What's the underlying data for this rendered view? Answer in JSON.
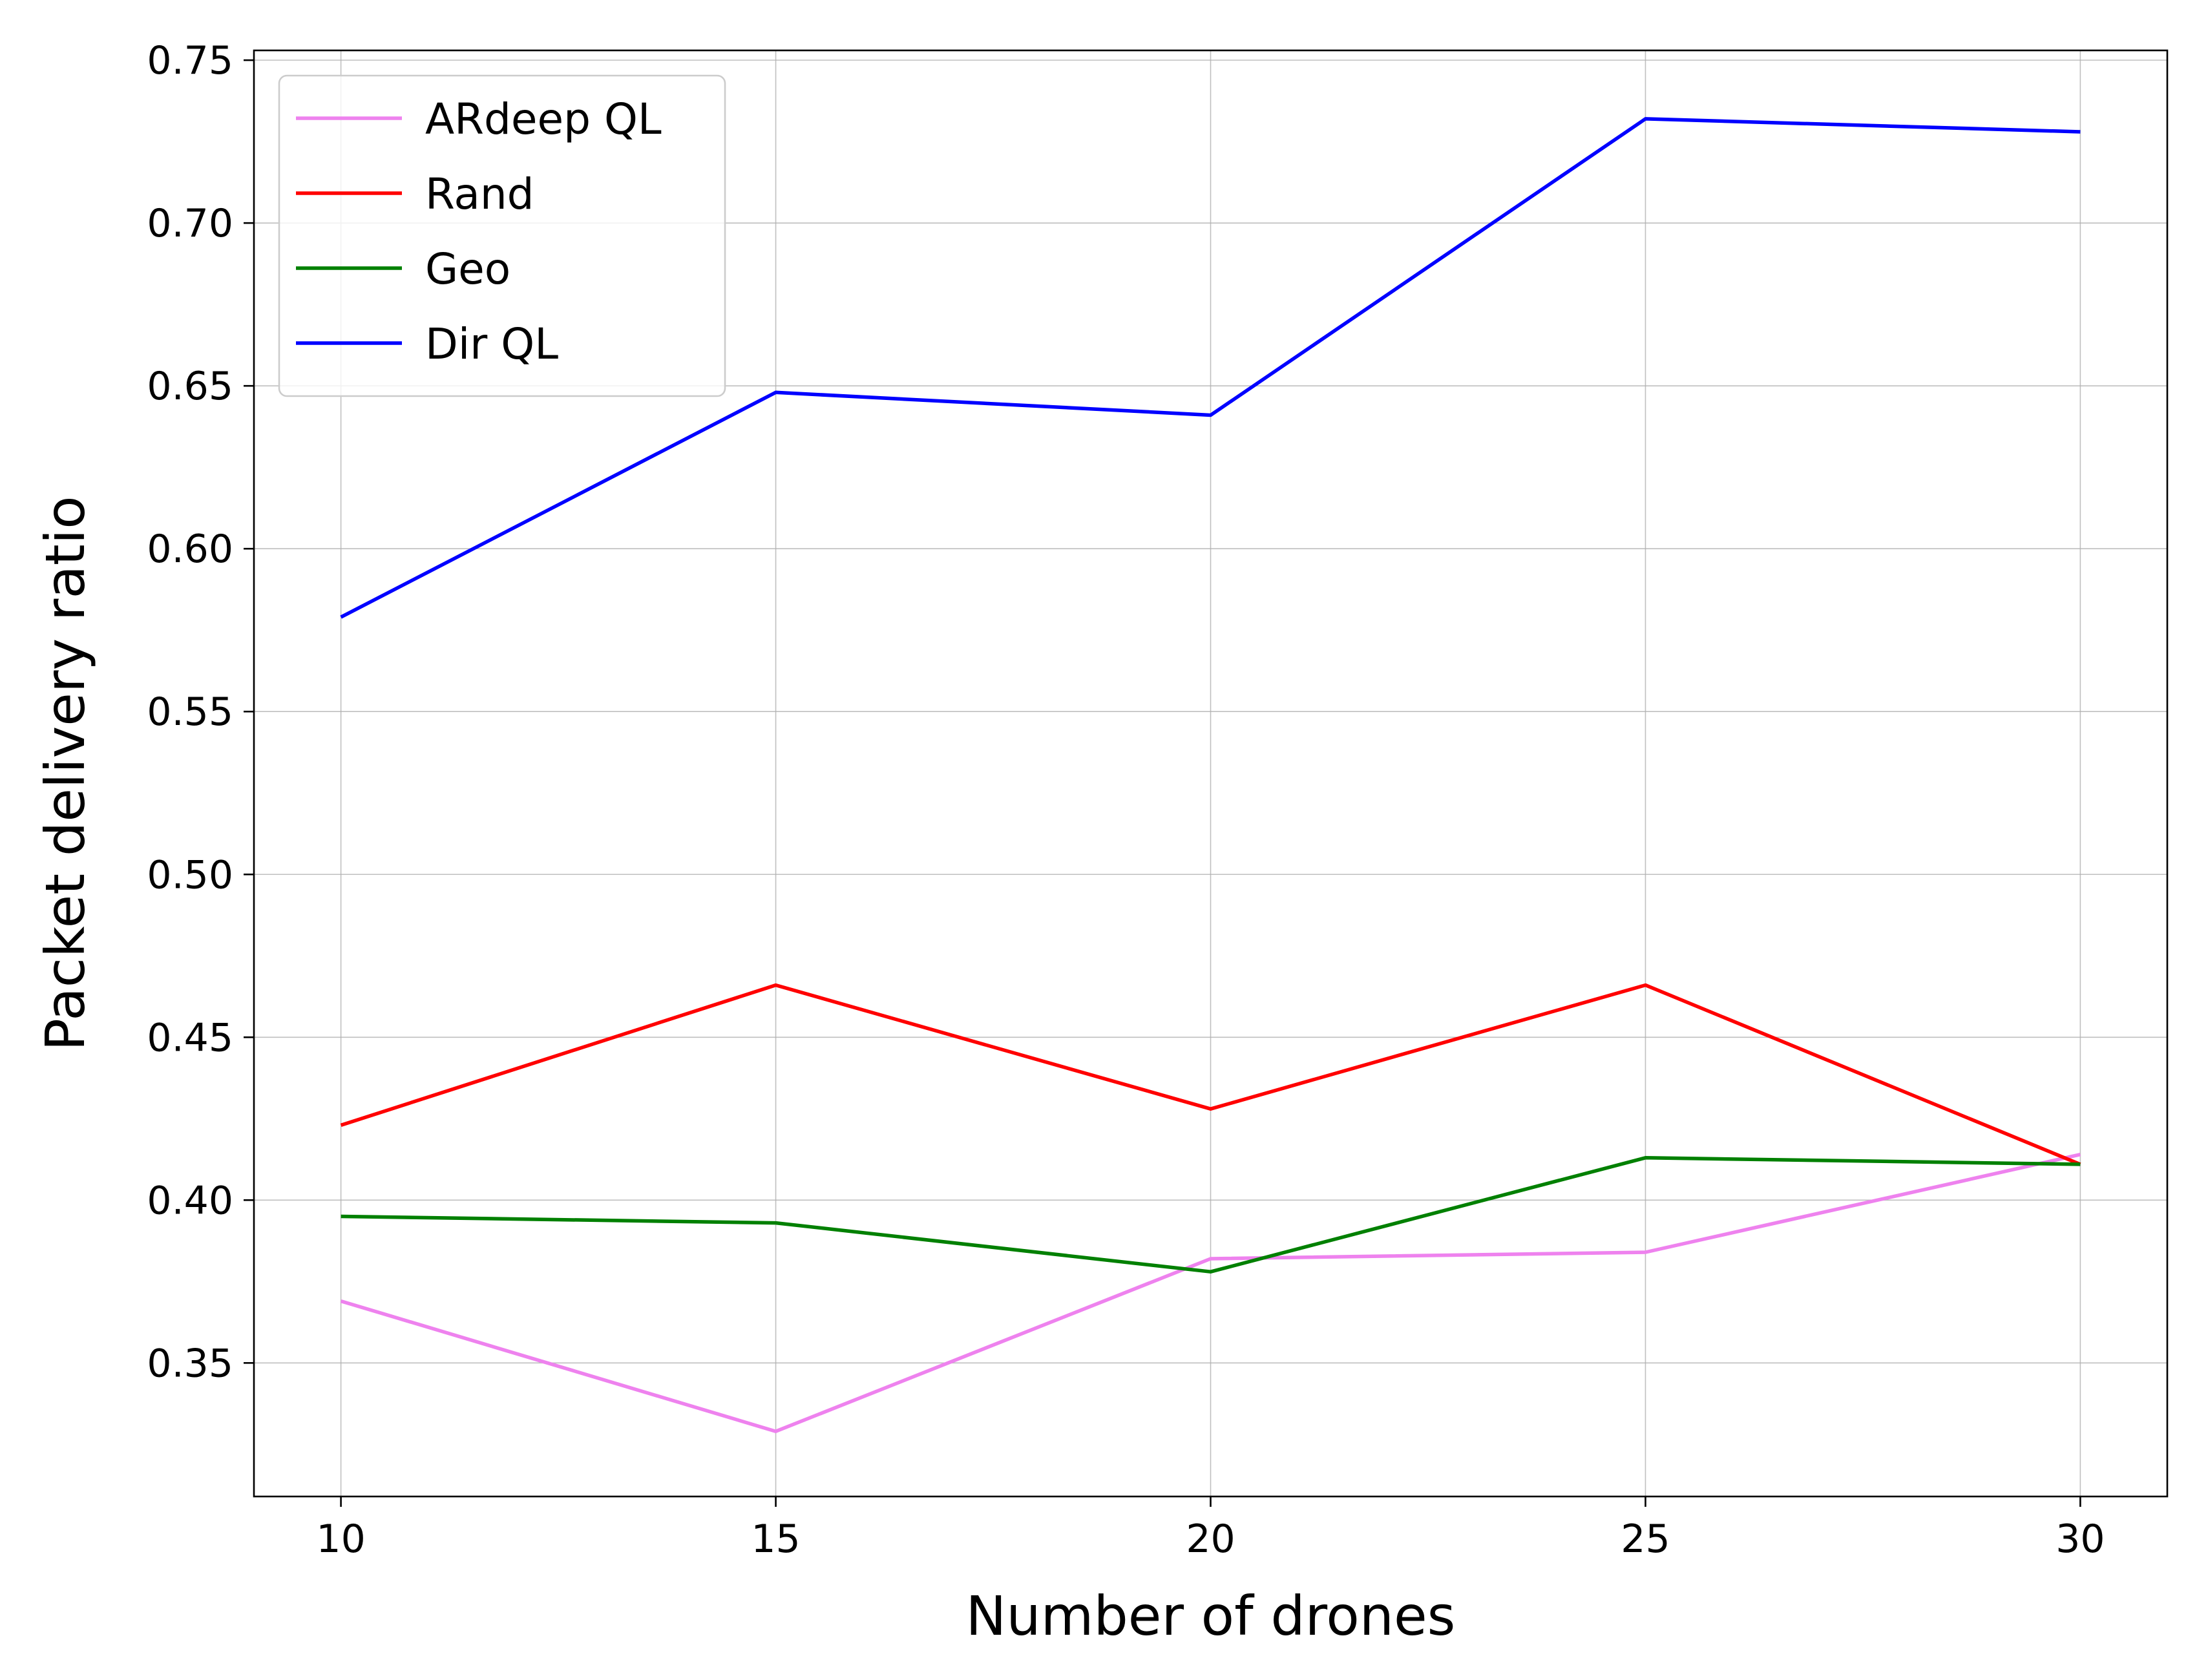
{
  "chart_data": {
    "type": "line",
    "title": "",
    "xlabel": "Number of drones",
    "ylabel": "Packet delivery ratio",
    "x": [
      10,
      15,
      20,
      25,
      30
    ],
    "xticks": [
      "10",
      "15",
      "20",
      "25",
      "30"
    ],
    "yticks": [
      "0.35",
      "0.40",
      "0.45",
      "0.50",
      "0.55",
      "0.60",
      "0.65",
      "0.70",
      "0.75"
    ],
    "xlim": [
      9,
      31
    ],
    "ylim": [
      0.309,
      0.753
    ],
    "grid": true,
    "legend_position": "top-left",
    "series": [
      {
        "name": "ARdeep QL",
        "color": "#ee82ee",
        "values": [
          0.369,
          0.329,
          0.382,
          0.384,
          0.414
        ]
      },
      {
        "name": "Rand",
        "color": "#ff0000",
        "values": [
          0.423,
          0.466,
          0.428,
          0.466,
          0.411
        ]
      },
      {
        "name": "Geo",
        "color": "#008000",
        "values": [
          0.395,
          0.393,
          0.378,
          0.413,
          0.411
        ]
      },
      {
        "name": "Dir QL",
        "color": "#0000ff",
        "values": [
          0.579,
          0.648,
          0.641,
          0.732,
          0.728
        ]
      }
    ]
  }
}
